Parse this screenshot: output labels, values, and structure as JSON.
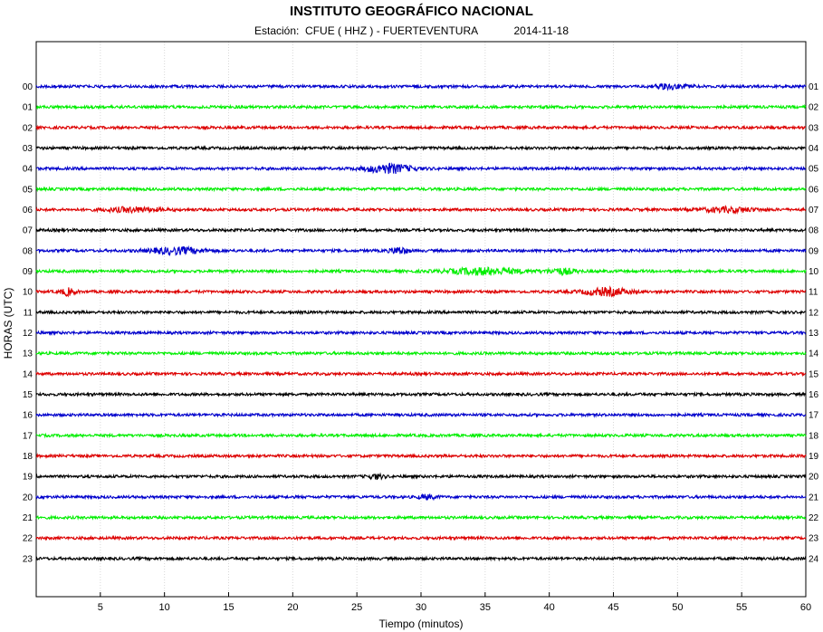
{
  "header": {
    "title": "INSTITUTO GEOGRÁFICO NACIONAL",
    "station_label": "Estación:",
    "station": "CFUE ( HHZ ) - FUERTEVENTURA",
    "date": "2014-11-18"
  },
  "chart_data": {
    "type": "line",
    "subtype": "helicorder",
    "title": "INSTITUTO GEOGRÁFICO NACIONAL",
    "xlabel": "Tiempo (minutos)",
    "ylabel": "HORAS (UTC)",
    "xlim": [
      0,
      60
    ],
    "x_ticks": [
      5,
      10,
      15,
      20,
      25,
      30,
      35,
      40,
      45,
      50,
      55,
      60
    ],
    "grid": "vertical",
    "trace_colors": [
      "#0000cc",
      "#00ee00",
      "#dd0000",
      "#000000"
    ],
    "left_labels": [
      "00",
      "01",
      "02",
      "03",
      "04",
      "05",
      "06",
      "07",
      "08",
      "09",
      "10",
      "11",
      "12",
      "13",
      "14",
      "15",
      "16",
      "17",
      "18",
      "19",
      "20",
      "21",
      "22",
      "23"
    ],
    "right_labels": [
      "01",
      "02",
      "03",
      "04",
      "05",
      "06",
      "07",
      "08",
      "09",
      "10",
      "11",
      "12",
      "13",
      "14",
      "15",
      "16",
      "17",
      "18",
      "19",
      "20",
      "21",
      "22",
      "23",
      "24"
    ],
    "events": [
      {
        "hour": "00",
        "minute": 49.5,
        "width": 2.0,
        "amplitude": 1.4
      },
      {
        "hour": "04",
        "minute": 27.5,
        "width": 2.5,
        "amplitude": 3.2
      },
      {
        "hour": "06",
        "minute": 7.5,
        "width": 3.0,
        "amplitude": 1.6
      },
      {
        "hour": "06",
        "minute": 54.0,
        "width": 3.0,
        "amplitude": 1.6
      },
      {
        "hour": "08",
        "minute": 11.0,
        "width": 3.0,
        "amplitude": 2.2
      },
      {
        "hour": "08",
        "minute": 28.3,
        "width": 1.0,
        "amplitude": 2.4
      },
      {
        "hour": "09",
        "minute": 35.0,
        "width": 4.0,
        "amplitude": 2.4
      },
      {
        "hour": "09",
        "minute": 41.0,
        "width": 1.5,
        "amplitude": 2.0
      },
      {
        "hour": "10",
        "minute": 2.5,
        "width": 0.8,
        "amplitude": 2.4
      },
      {
        "hour": "10",
        "minute": 44.5,
        "width": 2.5,
        "amplitude": 2.6
      },
      {
        "hour": "19",
        "minute": 26.5,
        "width": 0.8,
        "amplitude": 1.6
      },
      {
        "hour": "20",
        "minute": 30.5,
        "width": 1.0,
        "amplitude": 1.4
      }
    ]
  }
}
